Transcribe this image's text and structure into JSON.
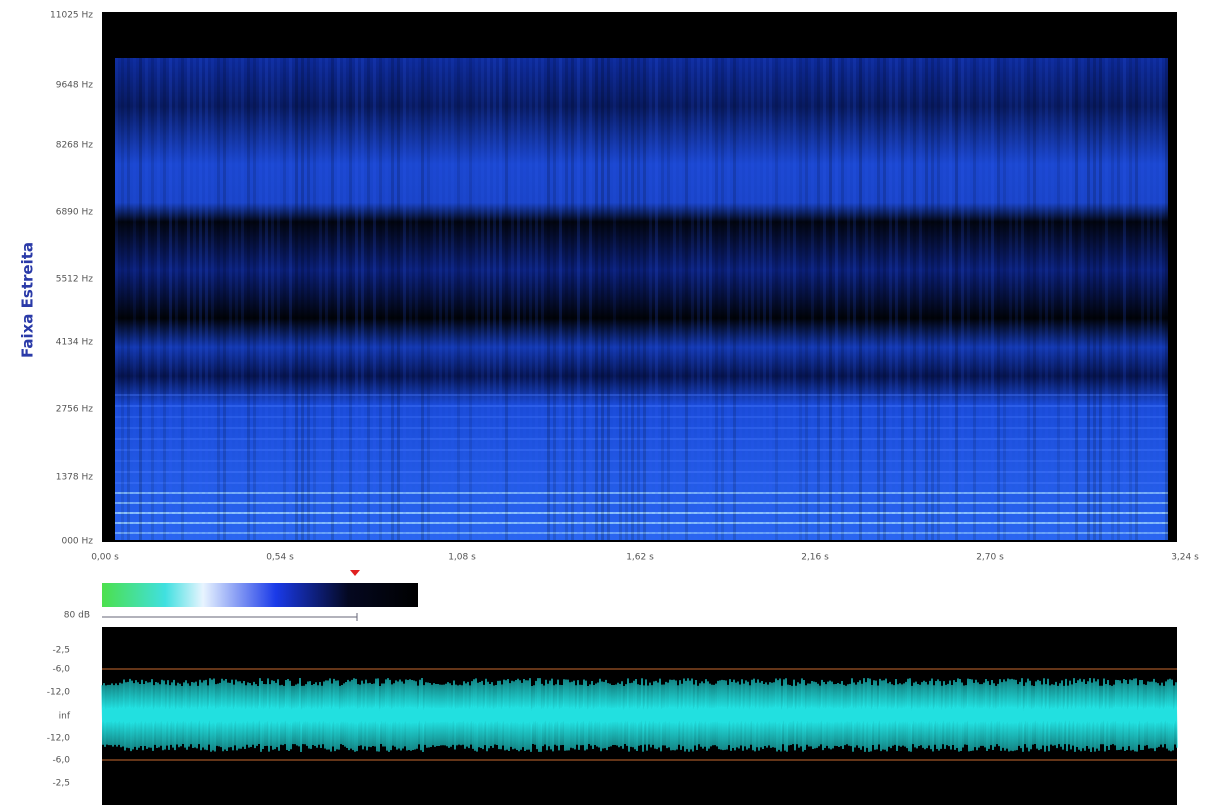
{
  "spectrogram": {
    "ylabel": "Faixa Estreita",
    "yticks": [
      "11025 Hz",
      "9648 Hz",
      "8268 Hz",
      "6890 Hz",
      "5512 Hz",
      "4134 Hz",
      "2756 Hz",
      "1378 Hz",
      "000 Hz"
    ],
    "xticks": [
      "0,00 s",
      "0,54 s",
      "1,08 s",
      "1,62 s",
      "2,16 s",
      "2,70 s",
      "3,24 s"
    ]
  },
  "colorbar": {
    "label": "80 dB"
  },
  "waveform": {
    "yticks": [
      "-2,5",
      "-6,0",
      "-12,0",
      "inf",
      "-12,0",
      "-6,0",
      "-2,5"
    ]
  }
}
